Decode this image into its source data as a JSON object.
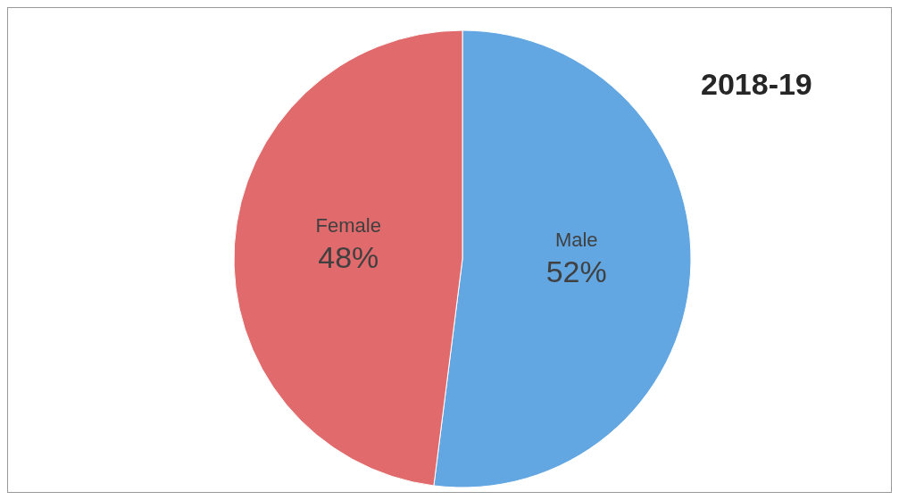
{
  "chart_data": {
    "type": "pie",
    "title": "2018-19",
    "categories": [
      "Male",
      "Female"
    ],
    "values": [
      52,
      48
    ],
    "colors": [
      "#62a6e2",
      "#e06a6c"
    ],
    "value_labels": [
      "52%",
      "48%"
    ]
  }
}
